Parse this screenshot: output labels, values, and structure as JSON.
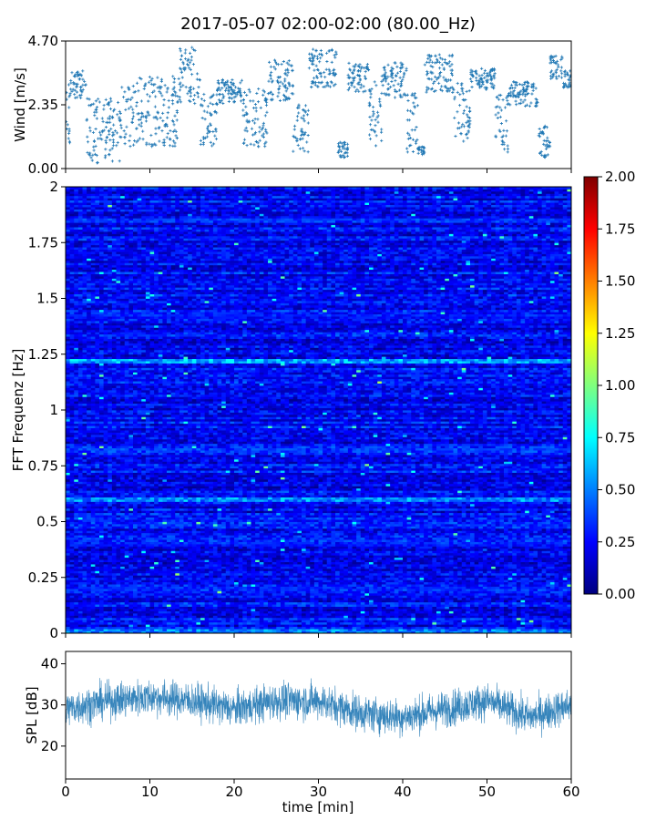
{
  "title": "2017-05-07 02:00-02:00 (80.00_Hz)",
  "chart_data": [
    {
      "type": "scatter",
      "name": "wind",
      "ylabel": "Wind [m/s]",
      "xlim": [
        0,
        60
      ],
      "ylim": [
        0,
        4.7
      ],
      "yticks": [
        "0.00",
        "2.35",
        "4.70"
      ],
      "color": "#1f77b4",
      "marker": "+",
      "grid": false,
      "segments": [
        {
          "x": [
            0.0,
            0.6
          ],
          "y_range": [
            0.5,
            3.1
          ]
        },
        {
          "x": [
            0.6,
            2.4
          ],
          "y_range": [
            2.6,
            3.6
          ]
        },
        {
          "x": [
            2.4,
            6.5
          ],
          "y_range": [
            0.2,
            2.6
          ]
        },
        {
          "x": [
            6.5,
            13.5
          ],
          "y_range": [
            0.8,
            3.4
          ]
        },
        {
          "x": [
            13.5,
            16.0
          ],
          "y_range": [
            2.4,
            4.6
          ]
        },
        {
          "x": [
            16.0,
            18.0
          ],
          "y_range": [
            0.8,
            2.8
          ]
        },
        {
          "x": [
            18.0,
            21.0
          ],
          "y_range": [
            2.4,
            3.3
          ]
        },
        {
          "x": [
            21.0,
            24.0
          ],
          "y_range": [
            0.8,
            3.0
          ]
        },
        {
          "x": [
            24.0,
            27.0
          ],
          "y_range": [
            2.5,
            4.0
          ]
        },
        {
          "x": [
            27.0,
            28.8
          ],
          "y_range": [
            0.6,
            2.5
          ]
        },
        {
          "x": [
            28.8,
            32.2
          ],
          "y_range": [
            3.0,
            4.4
          ]
        },
        {
          "x": [
            32.2,
            33.5
          ],
          "y_range": [
            0.4,
            1.0
          ]
        },
        {
          "x": [
            33.5,
            36.0
          ],
          "y_range": [
            2.8,
            3.9
          ]
        },
        {
          "x": [
            36.0,
            37.5
          ],
          "y_range": [
            0.8,
            3.2
          ]
        },
        {
          "x": [
            37.5,
            40.5
          ],
          "y_range": [
            2.6,
            3.9
          ]
        },
        {
          "x": [
            40.5,
            41.8
          ],
          "y_range": [
            0.6,
            2.8
          ]
        },
        {
          "x": [
            41.8,
            42.6
          ],
          "y_range": [
            0.5,
            0.8
          ]
        },
        {
          "x": [
            42.6,
            46.0
          ],
          "y_range": [
            2.8,
            4.2
          ]
        },
        {
          "x": [
            46.0,
            48.0
          ],
          "y_range": [
            1.0,
            3.2
          ]
        },
        {
          "x": [
            48.0,
            51.0
          ],
          "y_range": [
            2.9,
            3.7
          ]
        },
        {
          "x": [
            51.0,
            52.5
          ],
          "y_range": [
            0.6,
            2.8
          ]
        },
        {
          "x": [
            52.5,
            56.0
          ],
          "y_range": [
            2.3,
            3.2
          ]
        },
        {
          "x": [
            56.0,
            57.5
          ],
          "y_range": [
            0.4,
            1.6
          ]
        },
        {
          "x": [
            57.5,
            59.0
          ],
          "y_range": [
            3.3,
            4.2
          ]
        },
        {
          "x": [
            59.0,
            60.0
          ],
          "y_range": [
            2.9,
            3.6
          ]
        }
      ]
    },
    {
      "type": "heatmap",
      "name": "spectrogram",
      "ylabel": "FFT Frequenz [Hz]",
      "xlim": [
        0,
        60
      ],
      "ylim": [
        0,
        2
      ],
      "yticks": [
        "0",
        "0.25",
        "0.5",
        "0.75",
        "1",
        "1.25",
        "1.5",
        "1.75",
        "2"
      ],
      "colormap": "jet",
      "colorbar": {
        "range": [
          0,
          2
        ],
        "ticks": [
          "0.00",
          "0.25",
          "0.50",
          "0.75",
          "1.00",
          "1.25",
          "1.50",
          "1.75",
          "2.00"
        ],
        "stops": [
          "#00007f",
          "#0000ff",
          "#007fff",
          "#00ffff",
          "#7fff7f",
          "#ffff00",
          "#ff7f00",
          "#ff0000",
          "#7f0000"
        ]
      },
      "background_level": 0.25,
      "bright_bands": [
        {
          "freq": 0.01,
          "level": 1.0
        },
        {
          "freq": 0.2,
          "level": 0.55
        },
        {
          "freq": 0.4,
          "level": 0.55
        },
        {
          "freq": 0.6,
          "level": 1.05
        },
        {
          "freq": 0.82,
          "level": 0.7
        },
        {
          "freq": 1.22,
          "level": 1.15
        },
        {
          "freq": 1.42,
          "level": 0.5
        },
        {
          "freq": 1.85,
          "level": 0.6
        }
      ]
    },
    {
      "type": "line",
      "name": "spl",
      "ylabel": "SPL [dB]",
      "xlabel": "time [min]",
      "xlim": [
        0,
        60
      ],
      "ylim": [
        12,
        43
      ],
      "yticks": [
        20,
        30,
        40
      ],
      "xticks": [
        0,
        10,
        20,
        30,
        40,
        50,
        60
      ],
      "color": "#1f77b4",
      "mean_profile": {
        "x": [
          0,
          5,
          10,
          15,
          20,
          25,
          30,
          35,
          40,
          45,
          50,
          55,
          60
        ],
        "y": [
          29,
          31,
          32,
          31,
          29,
          31,
          31,
          28,
          27,
          29,
          31,
          27,
          30
        ]
      },
      "band_halfwidth": 4
    }
  ]
}
